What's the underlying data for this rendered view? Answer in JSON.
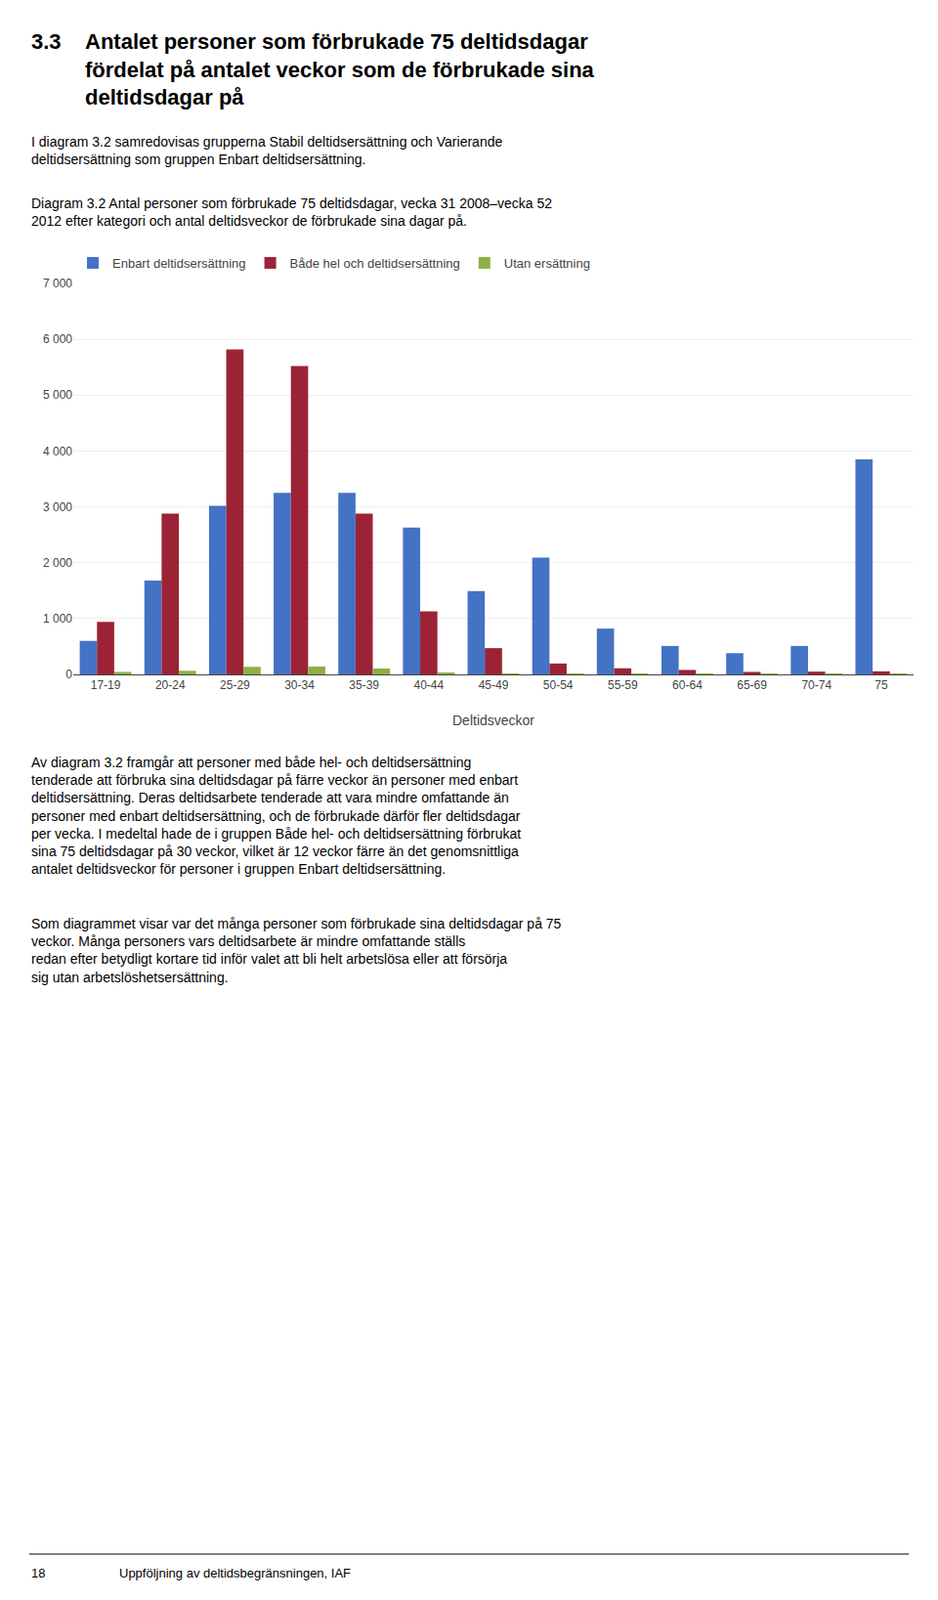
{
  "chart_data": {
    "type": "bar",
    "title": "Diagram 3.2 Antal personer som förbrukade 75 deltidsdagar, vecka 31 2008–vecka 52\n2012 efter kategori och antal deltidsveckor de förbrukade sina dagar på.",
    "annotations": [
      "3.3",
      "Antalet personer som förbrukade 75 deltidsdagar\nfördelat på antalet veckor som de förbrukade sina\ndeltidsdagar på",
      "I diagram 3.2 samredovisas grupperna Stabil deltidsersättning och Varierande\ndeltidsersättning som gruppen Enbart deltidsersättning.",
      "Av diagram 3.2 framgår att personer med både hel- och deltidsersättning\ntenderade att förbruka sina deltidsdagar på färre veckor än personer med enbart\ndeltidsersättning. Deras deltidsarbete tenderade att vara mindre omfattande än\npersoner med enbart deltidsersättning, och de förbrukade därför fler deltidsdagar\nper vecka. I medeltal hade de i gruppen Både hel- och deltidsersättning förbrukat\nsina 75 deltidsdagar på 30 veckor, vilket är 12 veckor färre än det genomsnittliga\nantalet deltidsveckor för personer i gruppen Enbart deltidsersättning.",
      "Som diagrammet visar var det många personer som förbrukade sina deltidsdagar på 75\nveckor. Många personers vars deltidsarbete är mindre omfattande ställs\nredan efter betydligt kortare tid inför valet att bli helt arbetslösa eller att försörja\nsig utan arbetslöshetsersättning.",
      "18",
      "Uppföljning av deltidsbegränsningen, IAF"
    ],
    "xlabel": "Deltidsveckor",
    "categories": [
      "17-19",
      "20-24",
      "25-29",
      "30-34",
      "35-39",
      "40-44",
      "45-49",
      "50-54",
      "55-59",
      "60-64",
      "65-69",
      "70-74",
      "75"
    ],
    "series": [
      {
        "name": "Enbart deltidsersättning",
        "color": "#4472C4",
        "values": [
          600,
          1680,
          3020,
          3250,
          3250,
          2630,
          1490,
          2090,
          820,
          510,
          380,
          510,
          3850
        ]
      },
      {
        "name": "Både hel och deltidsersättning",
        "color": "#9B2335",
        "values": [
          940,
          2880,
          5820,
          5520,
          2880,
          1130,
          470,
          195,
          110,
          80,
          45,
          50,
          55
        ]
      },
      {
        "name": "Utan ersättning",
        "color": "#8DB045",
        "values": [
          45,
          65,
          135,
          140,
          105,
          20,
          15,
          10,
          8,
          5,
          5,
          5,
          5
        ]
      }
    ],
    "ylim": [
      0,
      7000
    ],
    "yticks": [
      0,
      {
        "value": 1000,
        "label": "1 000"
      },
      {
        "value": 2000,
        "label": "2 000"
      },
      {
        "value": 3000,
        "label": "3 000"
      },
      {
        "value": 4000,
        "label": "4 000"
      },
      {
        "value": 5000,
        "label": "5 000"
      },
      {
        "value": 6000,
        "label": "6 000"
      },
      {
        "value": 7000,
        "label": "7 000"
      }
    ],
    "grid": true,
    "legend": "upper left"
  }
}
